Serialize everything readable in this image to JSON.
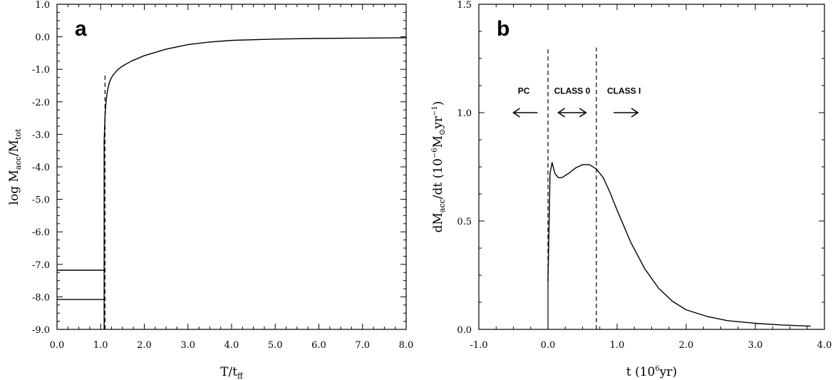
{
  "chart_data": [
    {
      "type": "line",
      "panel_label": "a",
      "xlim": [
        0,
        8
      ],
      "ylim": [
        -9,
        1
      ],
      "x_ticks": [
        0,
        1,
        2,
        3,
        4,
        5,
        6,
        7,
        8
      ],
      "x_tick_labels": [
        "0.0",
        "1.0",
        "2.0",
        "3.0",
        "4.0",
        "5.0",
        "6.0",
        "7.0",
        "8.0"
      ],
      "y_ticks": [
        1,
        0,
        -1,
        -2,
        -3,
        -4,
        -5,
        -6,
        -7,
        -8,
        -9
      ],
      "y_tick_labels": [
        "1.0",
        "0.0",
        "-1.0",
        "-2.0",
        "-3.0",
        "-4.0",
        "-5.0",
        "-6.0",
        "-7.0",
        "-8.0",
        "-9.0"
      ],
      "xlabel": {
        "main": "T/t",
        "sub": "ff"
      },
      "ylabel": {
        "pre": "log  M",
        "sub1": "acc",
        "mid": "/M",
        "sub2": "tot"
      },
      "series": [
        {
          "style": "solid",
          "x": [
            0,
            1.08
          ],
          "y": [
            -7.18,
            -7.18
          ]
        },
        {
          "style": "solid",
          "x": [
            0,
            1.08
          ],
          "y": [
            -8.08,
            -8.08
          ]
        },
        {
          "style": "solid",
          "x": [
            1.08,
            1.08,
            1.1,
            1.12,
            1.15,
            1.2,
            1.25,
            1.3,
            1.4,
            1.5,
            1.7,
            2.0,
            2.5,
            3.0,
            3.5,
            4.0,
            5.0,
            6.0,
            7.0,
            8.0
          ],
          "y": [
            -9.0,
            -3.2,
            -2.45,
            -2.05,
            -1.7,
            -1.4,
            -1.25,
            -1.15,
            -1.0,
            -0.9,
            -0.75,
            -0.58,
            -0.38,
            -0.24,
            -0.16,
            -0.11,
            -0.07,
            -0.05,
            -0.04,
            -0.03
          ]
        }
      ],
      "reference_lines": [
        {
          "style": "dashed",
          "x": [
            1.1,
            1.1
          ],
          "y": [
            -9.0,
            -1.1
          ]
        }
      ]
    },
    {
      "type": "line",
      "panel_label": "b",
      "xlim": [
        -1,
        4
      ],
      "ylim": [
        0,
        1.5
      ],
      "x_ticks": [
        -1,
        0,
        1,
        2,
        3,
        4
      ],
      "x_tick_labels": [
        "-1.0",
        "0.0",
        "1.0",
        "2.0",
        "3.0",
        "4.0"
      ],
      "y_ticks": [
        0,
        0.5,
        1.0,
        1.5
      ],
      "y_tick_labels": [
        "0.0",
        "0.5",
        "1.0",
        "1.5"
      ],
      "xlabel": {
        "pre": "t  (10",
        "sup": "6",
        "post": "yr)"
      },
      "ylabel": {
        "pre": "dM",
        "sub1": "acc",
        "mid": "/dt  (10",
        "sup1": "−6",
        "mid2": "M",
        "sub2": "⊙",
        "mid3": "yr",
        "sup2": "−1",
        "post": ")"
      },
      "series": [
        {
          "style": "solid",
          "x": [
            0,
            0.03,
            0.06,
            0.1,
            0.15,
            0.2,
            0.3,
            0.4,
            0.5,
            0.6,
            0.7,
            0.8,
            0.9,
            1.0,
            1.2,
            1.4,
            1.6,
            1.8,
            2.0,
            2.3,
            2.6,
            3.0,
            3.4,
            3.8
          ],
          "y": [
            0.22,
            0.72,
            0.77,
            0.72,
            0.7,
            0.7,
            0.72,
            0.745,
            0.76,
            0.76,
            0.74,
            0.7,
            0.63,
            0.55,
            0.4,
            0.28,
            0.19,
            0.13,
            0.09,
            0.06,
            0.04,
            0.028,
            0.02,
            0.015
          ]
        }
      ],
      "reference_lines": [
        {
          "style": "solid",
          "x": [
            0,
            0
          ],
          "y": [
            0,
            0.22
          ]
        },
        {
          "style": "dashed",
          "x": [
            0,
            0
          ],
          "y": [
            0.22,
            1.3
          ]
        },
        {
          "style": "dashed",
          "x": [
            0.7,
            0.7
          ],
          "y": [
            0,
            1.3
          ]
        }
      ],
      "annotations": [
        {
          "text": "PC",
          "x": -0.35,
          "y": 1.1,
          "arrow": "left",
          "arrow_x": [
            -0.5,
            -0.15
          ],
          "arrow_y": 1.0
        },
        {
          "text": "CLASS 0",
          "x": 0.35,
          "y": 1.1,
          "arrow": "both",
          "arrow_x": [
            0.15,
            0.55
          ],
          "arrow_y": 1.0
        },
        {
          "text": "CLASS I",
          "x": 1.1,
          "y": 1.1,
          "arrow": "right",
          "arrow_x": [
            0.95,
            1.3
          ],
          "arrow_y": 1.0
        }
      ]
    }
  ]
}
